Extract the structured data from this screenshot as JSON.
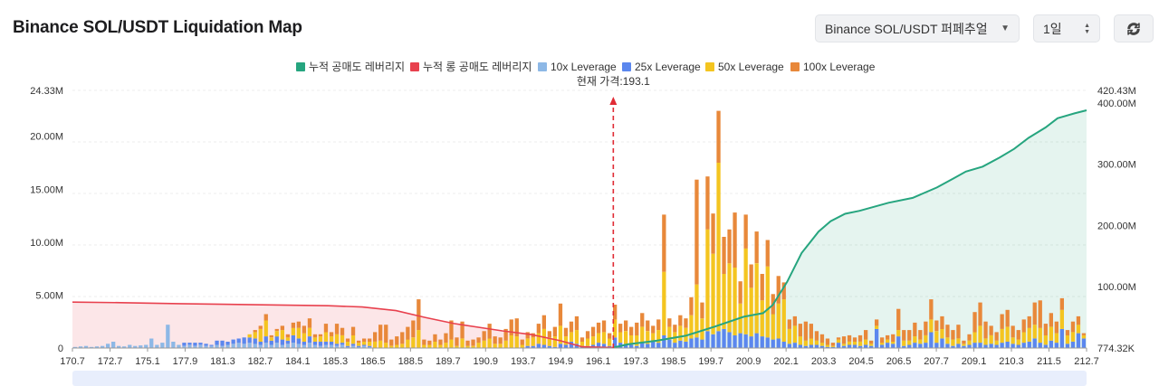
{
  "header": {
    "title": "Binance SOL/USDT Liquidation Map",
    "pair_value": "Binance SOL/USDT 퍼페추얼",
    "range_value": "1일"
  },
  "colors": {
    "short_cum": "#26a57f",
    "long_cum": "#e8414e",
    "lev10": "#8db8e6",
    "lev25": "#5b87ee",
    "lev50": "#f4c520",
    "lev100": "#e8883a"
  },
  "chart_data": {
    "type": "bar",
    "current_price_label": "현재 가격:193.1",
    "current_price": 193.1,
    "legend": [
      {
        "label": "누적 공매도 레버리지",
        "color_key": "short_cum"
      },
      {
        "label": "누적 롱 공매도 레버리지",
        "color_key": "long_cum"
      },
      {
        "label": "10x Leverage",
        "color_key": "lev10"
      },
      {
        "label": "25x Leverage",
        "color_key": "lev25"
      },
      {
        "label": "50x Leverage",
        "color_key": "lev50"
      },
      {
        "label": "100x Leverage",
        "color_key": "lev100"
      }
    ],
    "x_ticks": [
      "170.7",
      "172.7",
      "175.1",
      "177.9",
      "181.3",
      "182.7",
      "184.1",
      "185.3",
      "186.5",
      "188.5",
      "189.7",
      "190.9",
      "193.7",
      "194.9",
      "196.1",
      "197.3",
      "198.5",
      "199.7",
      "200.9",
      "202.1",
      "203.3",
      "204.5",
      "206.5",
      "207.7",
      "209.1",
      "210.3",
      "211.5",
      "212.7"
    ],
    "y_left_ticks": [
      "0",
      "5.00M",
      "10.00M",
      "15.00M",
      "20.00M",
      "24.33M"
    ],
    "y_left_max": 24.33,
    "y_right_ticks": [
      "774.32K",
      "100.00M",
      "200.00M",
      "300.00M",
      "400.00M",
      "420.43M"
    ],
    "y_right_max": 420.43,
    "bars": [
      [
        0.1,
        0,
        0,
        0
      ],
      [
        0.15,
        0,
        0,
        0
      ],
      [
        0.2,
        0,
        0,
        0
      ],
      [
        0.1,
        0,
        0,
        0
      ],
      [
        0.15,
        0,
        0,
        0
      ],
      [
        0.2,
        0,
        0,
        0
      ],
      [
        0.4,
        0,
        0,
        0
      ],
      [
        0.6,
        0,
        0,
        0
      ],
      [
        0.2,
        0,
        0,
        0
      ],
      [
        0.15,
        0,
        0,
        0
      ],
      [
        0.3,
        0,
        0,
        0
      ],
      [
        0.2,
        0,
        0,
        0
      ],
      [
        0.25,
        0,
        0,
        0
      ],
      [
        0.3,
        0,
        0,
        0
      ],
      [
        0.9,
        0,
        0,
        0
      ],
      [
        0.3,
        0,
        0,
        0
      ],
      [
        0.5,
        0,
        0,
        0
      ],
      [
        2.2,
        0,
        0,
        0
      ],
      [
        0.6,
        0,
        0,
        0
      ],
      [
        0.3,
        0,
        0,
        0
      ],
      [
        0.2,
        0.3,
        0,
        0
      ],
      [
        0.3,
        0.2,
        0,
        0
      ],
      [
        0.2,
        0.3,
        0,
        0
      ],
      [
        0.3,
        0.2,
        0,
        0
      ],
      [
        0.2,
        0.2,
        0,
        0
      ],
      [
        0.2,
        0.1,
        0,
        0
      ],
      [
        0.3,
        0.4,
        0,
        0
      ],
      [
        0.2,
        0.5,
        0,
        0
      ],
      [
        0.3,
        0.3,
        0,
        0
      ],
      [
        0.4,
        0.4,
        0,
        0
      ],
      [
        0.5,
        0.4,
        0,
        0
      ],
      [
        0.4,
        0.6,
        0,
        0
      ],
      [
        0.5,
        0.5,
        0.3,
        0
      ],
      [
        0.4,
        0.5,
        0.6,
        0.2
      ],
      [
        0.3,
        0.3,
        1.2,
        0.3
      ],
      [
        0.5,
        0.6,
        1.5,
        0.6
      ],
      [
        0.3,
        0.4,
        0.3,
        0.2
      ],
      [
        0.5,
        0.6,
        0.5,
        0.2
      ],
      [
        0.3,
        0.5,
        0.9,
        0.4
      ],
      [
        0.4,
        0.3,
        0.3,
        0.3
      ],
      [
        0.5,
        0.7,
        0.7,
        0.5
      ],
      [
        0.4,
        0.5,
        1.0,
        0.6
      ],
      [
        0.3,
        0.3,
        0.8,
        0.7
      ],
      [
        0.5,
        0.6,
        0.8,
        0.9
      ],
      [
        0.3,
        0.3,
        0.4,
        0.3
      ],
      [
        0.2,
        0.4,
        0.5,
        0.2
      ],
      [
        0.3,
        0.3,
        0.9,
        0.8
      ],
      [
        0.3,
        0.3,
        0.5,
        0.4
      ],
      [
        0.2,
        0.2,
        0.9,
        1.0
      ],
      [
        0.3,
        0.2,
        0.7,
        0.7
      ],
      [
        0.1,
        0.1,
        0.4,
        0.3
      ],
      [
        0.2,
        0.2,
        0.8,
        0.8
      ],
      [
        0.1,
        0.1,
        0.3,
        0.2
      ],
      [
        0.2,
        0.1,
        0.3,
        0.3
      ],
      [
        0.1,
        0.1,
        0.4,
        0.3
      ],
      [
        0,
        0,
        0.6,
        0.9
      ],
      [
        0,
        0,
        0.7,
        1.5
      ],
      [
        0,
        0,
        0.5,
        1.7
      ],
      [
        0,
        0,
        0.2,
        0.6
      ],
      [
        0,
        0,
        0.3,
        0.8
      ],
      [
        0,
        0,
        0.4,
        1.1
      ],
      [
        0,
        0,
        0.8,
        1.2
      ],
      [
        0,
        0,
        1.0,
        1.6
      ],
      [
        0,
        0,
        1.7,
        2.9
      ],
      [
        0,
        0,
        0.3,
        0.5
      ],
      [
        0,
        0,
        0.3,
        0.4
      ],
      [
        0,
        0,
        0.6,
        0.7
      ],
      [
        0,
        0,
        0.3,
        0.5
      ],
      [
        0,
        0,
        0.5,
        0.9
      ],
      [
        0,
        0,
        0.8,
        1.8
      ],
      [
        0,
        0,
        0.2,
        0.8
      ],
      [
        0,
        0,
        0.9,
        1.6
      ],
      [
        0,
        0,
        0.2,
        0.5
      ],
      [
        0,
        0,
        0.2,
        0.6
      ],
      [
        0,
        0,
        0.5,
        0.5
      ],
      [
        0,
        0,
        0.7,
        0.9
      ],
      [
        0,
        0,
        0.9,
        1.4
      ],
      [
        0,
        0,
        0.4,
        0.7
      ],
      [
        0,
        0,
        0.4,
        0.6
      ],
      [
        0,
        0,
        0.7,
        1.1
      ],
      [
        0,
        0,
        1.2,
        1.5
      ],
      [
        0,
        0,
        1.1,
        1.7
      ],
      [
        0,
        0,
        0.3,
        0.5
      ],
      [
        0,
        0.2,
        0.7,
        0.6
      ],
      [
        0,
        0.2,
        0.8,
        0.4
      ],
      [
        0,
        0.4,
        1.0,
        0.9
      ],
      [
        0,
        0.3,
        1.5,
        1.3
      ],
      [
        0,
        0.2,
        0.8,
        0.6
      ],
      [
        0,
        0.1,
        1.0,
        0.9
      ],
      [
        0,
        0.4,
        1.7,
        2.1
      ],
      [
        0,
        0.3,
        0.8,
        0.8
      ],
      [
        0,
        0.6,
        0.9,
        1.0
      ],
      [
        0,
        0.4,
        1.3,
        1.3
      ],
      [
        0,
        0.2,
        0.4,
        0.4
      ],
      [
        0,
        0.2,
        0.7,
        0.7
      ],
      [
        0,
        0.3,
        0.8,
        0.9
      ],
      [
        0,
        0.5,
        0.9,
        1.0
      ],
      [
        0,
        0.4,
        1.1,
        1.1
      ],
      [
        0,
        0.2,
        0.7,
        0.5
      ],
      [
        0,
        1.0,
        1.7,
        1.4
      ],
      [
        0,
        0.5,
        1.0,
        0.8
      ],
      [
        0,
        0.4,
        1.2,
        1.0
      ],
      [
        0,
        0.3,
        0.9,
        0.8
      ],
      [
        0,
        0.2,
        1.0,
        1.2
      ],
      [
        0,
        0.5,
        1.5,
        1.3
      ],
      [
        0,
        0.4,
        1.2,
        1.0
      ],
      [
        0,
        0.6,
        0.8,
        0.7
      ],
      [
        0,
        0.5,
        1.2,
        1.0
      ],
      [
        0,
        1.2,
        6.0,
        5.4
      ],
      [
        0,
        0.8,
        1.2,
        0.8
      ],
      [
        0,
        0.5,
        1.0,
        0.7
      ],
      [
        0,
        0.7,
        1.4,
        1.0
      ],
      [
        0,
        0.6,
        1.3,
        0.9
      ],
      [
        0,
        0.9,
        2.2,
        1.7
      ],
      [
        0,
        1.0,
        5.0,
        9.9
      ],
      [
        0,
        0.8,
        2.0,
        1.5
      ],
      [
        0,
        1.6,
        9.6,
        5.0
      ],
      [
        0,
        1.3,
        7.6,
        3.8
      ],
      [
        0,
        1.6,
        15.9,
        4.9
      ],
      [
        0,
        1.8,
        5.2,
        3.5
      ],
      [
        0,
        1.5,
        6.5,
        3.2
      ],
      [
        0,
        1.2,
        6.4,
        5.2
      ],
      [
        0,
        1.4,
        2.8,
        2.1
      ],
      [
        0,
        1.3,
        8.1,
        3.2
      ],
      [
        0,
        1.1,
        4.6,
        2.2
      ],
      [
        0,
        1.4,
        6.6,
        3.0
      ],
      [
        0,
        1.1,
        3.4,
        2.5
      ],
      [
        0,
        1.0,
        6.7,
        2.5
      ],
      [
        0,
        0.8,
        2.4,
        1.9
      ],
      [
        0,
        0.9,
        3.3,
        2.6
      ],
      [
        0,
        0.6,
        4.0,
        1.6
      ],
      [
        0,
        0.4,
        1.4,
        0.9
      ],
      [
        0,
        0.5,
        1.6,
        0.9
      ],
      [
        0,
        0.3,
        0.8,
        1.2
      ],
      [
        0,
        0.2,
        0.5,
        1.8
      ],
      [
        0,
        0.3,
        0.6,
        1.4
      ],
      [
        0,
        0.3,
        0.4,
        0.9
      ],
      [
        0,
        0.2,
        0.3,
        0.8
      ],
      [
        0,
        0.1,
        0.2,
        0.6
      ],
      [
        0,
        0.1,
        0.1,
        0.3
      ],
      [
        0,
        0.5,
        0.3,
        0.2
      ],
      [
        0,
        0.2,
        0.2,
        0.7
      ],
      [
        0,
        0.3,
        0.3,
        0.6
      ],
      [
        0,
        0.3,
        0.3,
        0.4
      ],
      [
        0,
        0.2,
        0.4,
        0.6
      ],
      [
        0,
        0.3,
        0.5,
        0.9
      ],
      [
        0,
        0.2,
        0.2,
        0.3
      ],
      [
        0,
        1.8,
        0.3,
        0.6
      ],
      [
        0,
        0.3,
        0.2,
        0.5
      ],
      [
        0,
        0.5,
        0.3,
        0.4
      ],
      [
        0,
        0.4,
        0.2,
        0.7
      ],
      [
        0,
        1.1,
        0.6,
        2.0
      ],
      [
        0,
        0.2,
        0.5,
        1.0
      ],
      [
        0,
        0.3,
        0.4,
        1.0
      ],
      [
        0,
        0.5,
        0.6,
        1.3
      ],
      [
        0,
        0.4,
        0.4,
        0.9
      ],
      [
        0,
        0.5,
        0.7,
        1.3
      ],
      [
        0,
        1.5,
        1.2,
        1.9
      ],
      [
        0,
        0.5,
        1.1,
        1.0
      ],
      [
        0,
        0.9,
        0.9,
        1.2
      ],
      [
        0,
        0.4,
        0.6,
        1.2
      ],
      [
        0,
        0.2,
        0.6,
        0.9
      ],
      [
        0,
        0.4,
        0.5,
        1.3
      ],
      [
        0,
        0.2,
        0.2,
        0.3
      ],
      [
        0,
        0.3,
        0.4,
        0.6
      ],
      [
        0,
        0.5,
        1.0,
        1.9
      ],
      [
        0,
        0.5,
        1.6,
        2.2
      ],
      [
        0,
        0.3,
        0.6,
        1.6
      ],
      [
        0,
        0.4,
        0.8,
        0.9
      ],
      [
        0,
        0.3,
        0.4,
        0.8
      ],
      [
        0,
        0.5,
        1.3,
        1.4
      ],
      [
        0,
        0.6,
        1.4,
        1.6
      ],
      [
        0,
        0.4,
        0.6,
        1.1
      ],
      [
        0,
        0.3,
        0.5,
        0.9
      ],
      [
        0,
        0.5,
        1.0,
        1.2
      ],
      [
        0,
        0.6,
        1.3,
        1.1
      ],
      [
        0,
        0.9,
        1.3,
        2.1
      ],
      [
        0,
        0.5,
        1.4,
        2.6
      ],
      [
        0,
        0.3,
        0.9,
        1.1
      ],
      [
        0,
        0.7,
        1.3,
        1.3
      ],
      [
        0,
        0.5,
        0.9,
        1.1
      ],
      [
        0,
        1.8,
        1.8,
        1.1
      ],
      [
        0,
        0.4,
        0.8,
        0.5
      ],
      [
        0,
        0.6,
        0.9,
        1.0
      ],
      [
        0,
        1.4,
        0.8,
        0.8
      ],
      [
        0,
        0.9,
        0.3,
        0.2
      ]
    ],
    "long_cum": [
      [
        170.7,
        75.0
      ],
      [
        172.7,
        74.0
      ],
      [
        175.1,
        72.5
      ],
      [
        177.9,
        71.0
      ],
      [
        181.3,
        69.0
      ],
      [
        182.7,
        67.0
      ],
      [
        184.1,
        61.0
      ],
      [
        185.3,
        50.0
      ],
      [
        186.5,
        40.0
      ],
      [
        188.5,
        28.0
      ],
      [
        189.7,
        22.0
      ],
      [
        190.9,
        12.0
      ],
      [
        191.8,
        2.0
      ],
      [
        193.1,
        0.8
      ]
    ],
    "short_cum": [
      [
        193.1,
        0.8
      ],
      [
        193.7,
        6.0
      ],
      [
        194.9,
        12.0
      ],
      [
        196.1,
        20.0
      ],
      [
        197.3,
        35.0
      ],
      [
        198.5,
        51.0
      ],
      [
        199.3,
        57.0
      ],
      [
        199.7,
        70.0
      ],
      [
        200.3,
        108.0
      ],
      [
        200.9,
        155.0
      ],
      [
        201.6,
        190.0
      ],
      [
        202.1,
        207.0
      ],
      [
        202.7,
        219.0
      ],
      [
        203.3,
        224.0
      ],
      [
        204.5,
        237.0
      ],
      [
        205.5,
        245.0
      ],
      [
        206.5,
        262.0
      ],
      [
        207.2,
        277.0
      ],
      [
        207.7,
        288.0
      ],
      [
        208.4,
        296.0
      ],
      [
        209.1,
        311.0
      ],
      [
        209.7,
        325.0
      ],
      [
        210.3,
        343.0
      ],
      [
        211.0,
        360.0
      ],
      [
        211.5,
        375.0
      ],
      [
        212.2,
        383.0
      ],
      [
        212.7,
        388.0
      ]
    ]
  }
}
